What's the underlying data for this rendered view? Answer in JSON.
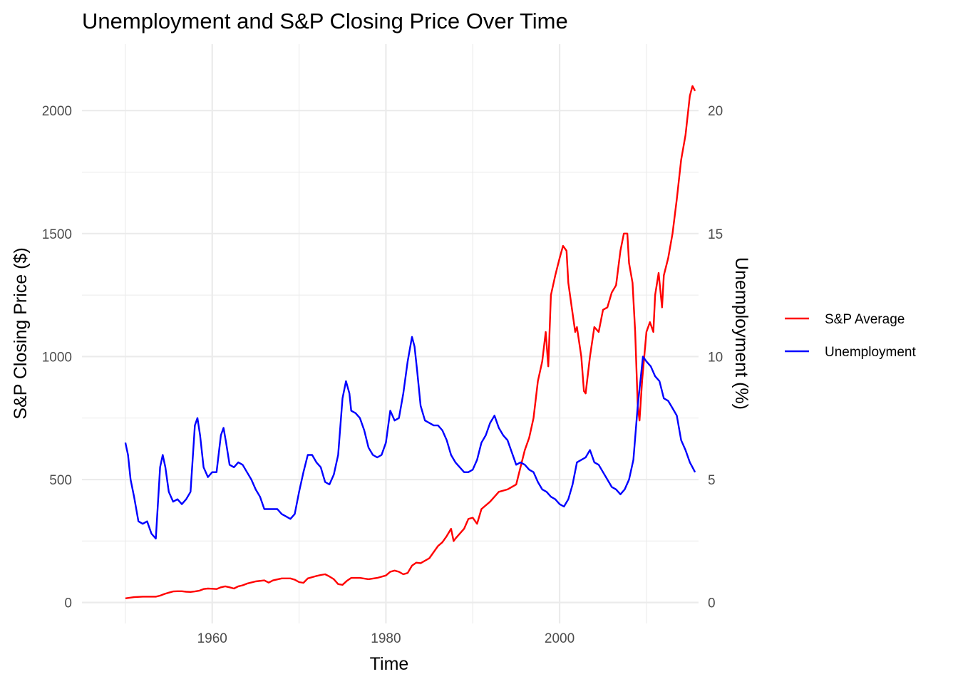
{
  "chart_data": {
    "type": "line",
    "title": "Unemployment and S&P Closing Price Over Time",
    "xlabel": "Time",
    "ylabel": "S&P Closing Price ($)",
    "y2label": "Unemployment (%)",
    "xlim": [
      1945.0,
      2016.0
    ],
    "ylim": [
      -85,
      2270
    ],
    "y2lim": [
      -0.85,
      22.7
    ],
    "x_ticks": [
      1960,
      1980,
      2000
    ],
    "y_ticks": [
      0,
      500,
      1000,
      1500,
      2000
    ],
    "y2_ticks": [
      0,
      5,
      10,
      15,
      20
    ],
    "grid": true,
    "legend_position": "right",
    "legend": [
      {
        "name": "S&P Average",
        "color": "#ff0000"
      },
      {
        "name": "Unemployment",
        "color": "#0000ff"
      }
    ],
    "series": [
      {
        "name": "S&P Average",
        "color": "#ff0000",
        "axis": "left",
        "x": [
          1950.0,
          1951.0,
          1952.0,
          1953.0,
          1953.5,
          1954.0,
          1954.5,
          1955.0,
          1955.5,
          1956.0,
          1956.5,
          1957.0,
          1957.5,
          1958.0,
          1958.5,
          1959.0,
          1959.5,
          1960.0,
          1960.5,
          1961.0,
          1961.5,
          1962.0,
          1962.5,
          1963.0,
          1963.5,
          1964.0,
          1965.0,
          1966.0,
          1966.5,
          1967.0,
          1968.0,
          1969.0,
          1969.5,
          1970.0,
          1970.5,
          1971.0,
          1972.0,
          1972.5,
          1973.0,
          1973.5,
          1974.0,
          1974.5,
          1975.0,
          1975.5,
          1976.0,
          1977.0,
          1978.0,
          1979.0,
          1980.0,
          1980.5,
          1981.0,
          1981.5,
          1982.0,
          1982.5,
          1983.0,
          1983.5,
          1984.0,
          1985.0,
          1986.0,
          1986.5,
          1987.0,
          1987.5,
          1987.8,
          1988.0,
          1989.0,
          1989.5,
          1990.0,
          1990.5,
          1991.0,
          1992.0,
          1993.0,
          1994.0,
          1995.0,
          1995.5,
          1996.0,
          1996.5,
          1997.0,
          1997.5,
          1998.0,
          1998.4,
          1998.7,
          1999.0,
          1999.5,
          2000.0,
          2000.4,
          2000.8,
          2001.0,
          2001.4,
          2001.8,
          2002.0,
          2002.5,
          2002.8,
          2003.0,
          2003.5,
          2004.0,
          2004.5,
          2005.0,
          2005.5,
          2006.0,
          2006.5,
          2007.0,
          2007.4,
          2007.8,
          2008.0,
          2008.4,
          2008.7,
          2009.0,
          2009.2,
          2009.5,
          2010.0,
          2010.4,
          2010.8,
          2011.0,
          2011.4,
          2011.8,
          2012.0,
          2012.5,
          2013.0,
          2013.5,
          2014.0,
          2014.5,
          2015.0,
          2015.3,
          2015.6
        ],
        "y": [
          17,
          22,
          24,
          24,
          24,
          28,
          35,
          40,
          45,
          46,
          46,
          44,
          43,
          45,
          48,
          55,
          57,
          56,
          55,
          62,
          66,
          62,
          57,
          66,
          70,
          77,
          86,
          90,
          81,
          90,
          98,
          98,
          93,
          83,
          80,
          98,
          108,
          112,
          115,
          106,
          95,
          75,
          72,
          88,
          100,
          100,
          95,
          100,
          110,
          125,
          130,
          125,
          115,
          120,
          150,
          162,
          160,
          180,
          230,
          245,
          270,
          300,
          250,
          260,
          300,
          340,
          345,
          320,
          380,
          410,
          450,
          460,
          480,
          550,
          620,
          670,
          750,
          900,
          980,
          1100,
          960,
          1250,
          1330,
          1400,
          1450,
          1430,
          1300,
          1200,
          1100,
          1120,
          1000,
          860,
          850,
          1000,
          1120,
          1100,
          1190,
          1200,
          1260,
          1290,
          1430,
          1500,
          1500,
          1380,
          1300,
          1100,
          800,
          740,
          900,
          1100,
          1140,
          1100,
          1250,
          1340,
          1200,
          1330,
          1400,
          1500,
          1640,
          1800,
          1900,
          2060,
          2100,
          2080
        ]
      },
      {
        "name": "Unemployment",
        "color": "#0000ff",
        "axis": "right",
        "x": [
          1950.0,
          1950.3,
          1950.6,
          1951.0,
          1951.5,
          1952.0,
          1952.5,
          1953.0,
          1953.5,
          1954.0,
          1954.3,
          1954.6,
          1955.0,
          1955.5,
          1956.0,
          1956.5,
          1957.0,
          1957.5,
          1958.0,
          1958.3,
          1958.6,
          1959.0,
          1959.5,
          1960.0,
          1960.5,
          1961.0,
          1961.3,
          1961.6,
          1962.0,
          1962.5,
          1963.0,
          1963.5,
          1964.0,
          1964.5,
          1965.0,
          1965.5,
          1966.0,
          1966.5,
          1967.0,
          1967.5,
          1968.0,
          1968.5,
          1969.0,
          1969.5,
          1970.0,
          1970.5,
          1971.0,
          1971.5,
          1972.0,
          1972.5,
          1973.0,
          1973.5,
          1974.0,
          1974.5,
          1975.0,
          1975.4,
          1975.8,
          1976.0,
          1976.5,
          1977.0,
          1977.5,
          1978.0,
          1978.5,
          1979.0,
          1979.5,
          1980.0,
          1980.5,
          1981.0,
          1981.5,
          1982.0,
          1982.5,
          1983.0,
          1983.3,
          1983.6,
          1984.0,
          1984.5,
          1985.0,
          1985.5,
          1986.0,
          1986.5,
          1987.0,
          1987.5,
          1988.0,
          1988.5,
          1989.0,
          1989.5,
          1990.0,
          1990.5,
          1991.0,
          1991.5,
          1992.0,
          1992.5,
          1993.0,
          1993.5,
          1994.0,
          1994.5,
          1995.0,
          1995.5,
          1996.0,
          1996.5,
          1997.0,
          1997.5,
          1998.0,
          1998.5,
          1999.0,
          1999.5,
          2000.0,
          2000.5,
          2001.0,
          2001.5,
          2002.0,
          2002.5,
          2003.0,
          2003.5,
          2004.0,
          2004.5,
          2005.0,
          2005.5,
          2006.0,
          2006.5,
          2007.0,
          2007.5,
          2008.0,
          2008.5,
          2009.0,
          2009.3,
          2009.6,
          2010.0,
          2010.5,
          2011.0,
          2011.5,
          2012.0,
          2012.5,
          2013.0,
          2013.5,
          2014.0,
          2014.5,
          2015.0,
          2015.3,
          2015.6
        ],
        "y": [
          6.5,
          6.0,
          5.0,
          4.3,
          3.3,
          3.2,
          3.3,
          2.8,
          2.6,
          5.5,
          6.0,
          5.5,
          4.5,
          4.1,
          4.2,
          4.0,
          4.2,
          4.5,
          7.2,
          7.5,
          6.8,
          5.5,
          5.1,
          5.3,
          5.3,
          6.8,
          7.1,
          6.5,
          5.6,
          5.5,
          5.7,
          5.6,
          5.3,
          5.0,
          4.6,
          4.3,
          3.8,
          3.8,
          3.8,
          3.8,
          3.6,
          3.5,
          3.4,
          3.6,
          4.5,
          5.3,
          6.0,
          6.0,
          5.7,
          5.5,
          4.9,
          4.8,
          5.2,
          6.0,
          8.3,
          9.0,
          8.5,
          7.8,
          7.7,
          7.5,
          7.0,
          6.3,
          6.0,
          5.9,
          6.0,
          6.5,
          7.8,
          7.4,
          7.5,
          8.5,
          9.8,
          10.8,
          10.4,
          9.4,
          8.0,
          7.4,
          7.3,
          7.2,
          7.2,
          7.0,
          6.6,
          6.0,
          5.7,
          5.5,
          5.3,
          5.3,
          5.4,
          5.8,
          6.5,
          6.8,
          7.3,
          7.6,
          7.1,
          6.8,
          6.6,
          6.1,
          5.6,
          5.7,
          5.6,
          5.4,
          5.3,
          4.9,
          4.6,
          4.5,
          4.3,
          4.2,
          4.0,
          3.9,
          4.2,
          4.8,
          5.7,
          5.8,
          5.9,
          6.2,
          5.7,
          5.6,
          5.3,
          5.0,
          4.7,
          4.6,
          4.4,
          4.6,
          5.0,
          5.8,
          8.0,
          9.0,
          10.0,
          9.8,
          9.6,
          9.2,
          9.0,
          8.3,
          8.2,
          7.9,
          7.6,
          6.6,
          6.2,
          5.7,
          5.5,
          5.3
        ]
      }
    ]
  }
}
